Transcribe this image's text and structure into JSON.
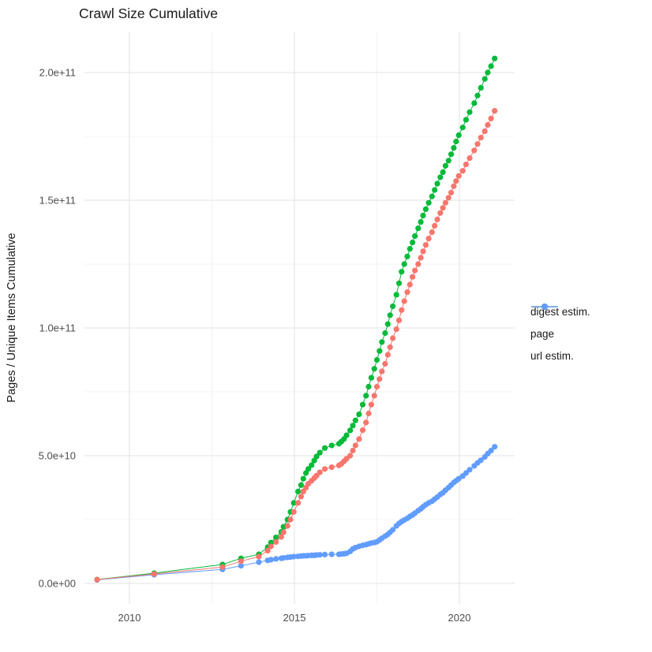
{
  "title": "Crawl Size Cumulative",
  "y_axis_label": "Pages / Unique Items Cumulative",
  "legend": {
    "position": "right",
    "items": [
      {
        "label": "digest estim.",
        "color": "#F8766D"
      },
      {
        "label": "page",
        "color": "#00BA38"
      },
      {
        "label": "url estim.",
        "color": "#619CFF"
      }
    ]
  },
  "colors": {
    "background": "#ffffff",
    "grid_major": "#e3e3e3",
    "grid_minor": "#f0f0f0",
    "tick_label": "#4d4d4d"
  },
  "chart_data": {
    "type": "scatter",
    "title": "Crawl Size Cumulative",
    "xlabel": "",
    "ylabel": "Pages / Unique Items Cumulative",
    "grid": true,
    "legend_position": "right",
    "xlim": [
      2008.6,
      2021.7
    ],
    "ylim": [
      0,
      216000000000.0
    ],
    "x_ticks": [
      {
        "value": 2010,
        "label": "2010"
      },
      {
        "value": 2015,
        "label": "2015"
      },
      {
        "value": 2020,
        "label": "2020"
      }
    ],
    "x_minor_ticks": [
      2012.5,
      2017.5
    ],
    "y_ticks": [
      {
        "value": 0,
        "label": "0.0e+00"
      },
      {
        "value": 50000000000.0,
        "label": "5.0e+10"
      },
      {
        "value": 100000000000.0,
        "label": "1.0e+11"
      },
      {
        "value": 150000000000.0,
        "label": "1.5e+11"
      },
      {
        "value": 200000000000.0,
        "label": "2.0e+11"
      }
    ],
    "y_minor_ticks": [
      25000000000.0,
      75000000000.0,
      125000000000.0,
      175000000000.0
    ],
    "series": [
      {
        "name": "digest estim.",
        "color": "#F8766D",
        "points": [
          [
            2009.02,
            1480000000.0
          ],
          [
            2010.75,
            3700000000.0
          ],
          [
            2012.82,
            6400000000.0
          ],
          [
            2013.38,
            8700000000.0
          ],
          [
            2013.92,
            10500000000.0
          ],
          [
            2014.19,
            12800000000.0
          ],
          [
            2014.29,
            14500000000.0
          ],
          [
            2014.44,
            16200000000.0
          ],
          [
            2014.6,
            18200000000.0
          ],
          [
            2014.67,
            20000000000.0
          ],
          [
            2014.79,
            22500000000.0
          ],
          [
            2014.88,
            25000000000.0
          ],
          [
            2014.98,
            28000000000.0
          ],
          [
            2015.11,
            31500000000.0
          ],
          [
            2015.2,
            34000000000.0
          ],
          [
            2015.27,
            36000000000.0
          ],
          [
            2015.35,
            37500000000.0
          ],
          [
            2015.42,
            39000000000.0
          ],
          [
            2015.52,
            40200000000.0
          ],
          [
            2015.6,
            41200000000.0
          ],
          [
            2015.67,
            42200000000.0
          ],
          [
            2015.77,
            43500000000.0
          ],
          [
            2015.92,
            44800000000.0
          ],
          [
            2016.13,
            45500000000.0
          ],
          [
            2016.35,
            46200000000.0
          ],
          [
            2016.42,
            46800000000.0
          ],
          [
            2016.5,
            47800000000.0
          ],
          [
            2016.58,
            48800000000.0
          ],
          [
            2016.69,
            50000000000.0
          ],
          [
            2016.77,
            52000000000.0
          ],
          [
            2016.85,
            54000000000.0
          ],
          [
            2016.96,
            56500000000.0
          ],
          [
            2017.07,
            60000000000.0
          ],
          [
            2017.17,
            63000000000.0
          ],
          [
            2017.25,
            66500000000.0
          ],
          [
            2017.33,
            70000000000.0
          ],
          [
            2017.42,
            73500000000.0
          ],
          [
            2017.5,
            77000000000.0
          ],
          [
            2017.58,
            80000000000.0
          ],
          [
            2017.65,
            83000000000.0
          ],
          [
            2017.75,
            86000000000.0
          ],
          [
            2017.83,
            89500000000.0
          ],
          [
            2017.9,
            92500000000.0
          ],
          [
            2017.98,
            96000000000.0
          ],
          [
            2018.09,
            99500000000.0
          ],
          [
            2018.17,
            103000000000.0
          ],
          [
            2018.25,
            107000000000.0
          ],
          [
            2018.33,
            110500000000.0
          ],
          [
            2018.42,
            114000000000.0
          ],
          [
            2018.5,
            117000000000.0
          ],
          [
            2018.58,
            120000000000.0
          ],
          [
            2018.65,
            122500000000.0
          ],
          [
            2018.75,
            125000000000.0
          ],
          [
            2018.83,
            127500000000.0
          ],
          [
            2018.9,
            130000000000.0
          ],
          [
            2018.98,
            132500000000.0
          ],
          [
            2019.07,
            135000000000.0
          ],
          [
            2019.17,
            137500000000.0
          ],
          [
            2019.25,
            140000000000.0
          ],
          [
            2019.33,
            142500000000.0
          ],
          [
            2019.42,
            145000000000.0
          ],
          [
            2019.5,
            147000000000.0
          ],
          [
            2019.58,
            149000000000.0
          ],
          [
            2019.67,
            151000000000.0
          ],
          [
            2019.75,
            153000000000.0
          ],
          [
            2019.83,
            155500000000.0
          ],
          [
            2019.9,
            157500000000.0
          ],
          [
            2019.98,
            159500000000.0
          ],
          [
            2020.1,
            161500000000.0
          ],
          [
            2020.2,
            164000000000.0
          ],
          [
            2020.31,
            166500000000.0
          ],
          [
            2020.45,
            169500000000.0
          ],
          [
            2020.55,
            172000000000.0
          ],
          [
            2020.65,
            174500000000.0
          ],
          [
            2020.77,
            177000000000.0
          ],
          [
            2020.86,
            179500000000.0
          ],
          [
            2020.96,
            182000000000.0
          ],
          [
            2021.07,
            185000000000.0
          ]
        ]
      },
      {
        "name": "page",
        "color": "#00BA38",
        "points": [
          [
            2009.02,
            1500000000.0
          ],
          [
            2010.75,
            4000000000.0
          ],
          [
            2012.82,
            7400000000.0
          ],
          [
            2013.38,
            9800000000.0
          ],
          [
            2013.92,
            11400000000.0
          ],
          [
            2014.19,
            14200000000.0
          ],
          [
            2014.29,
            16000000000.0
          ],
          [
            2014.44,
            18000000000.0
          ],
          [
            2014.6,
            20200000000.0
          ],
          [
            2014.67,
            22200000000.0
          ],
          [
            2014.79,
            25000000000.0
          ],
          [
            2014.88,
            28000000000.0
          ],
          [
            2014.98,
            31500000000.0
          ],
          [
            2015.11,
            36000000000.0
          ],
          [
            2015.2,
            38500000000.0
          ],
          [
            2015.27,
            41000000000.0
          ],
          [
            2015.35,
            43200000000.0
          ],
          [
            2015.42,
            44800000000.0
          ],
          [
            2015.52,
            46300000000.0
          ],
          [
            2015.6,
            48100000000.0
          ],
          [
            2015.67,
            49700000000.0
          ],
          [
            2015.77,
            51200000000.0
          ],
          [
            2015.92,
            53000000000.0
          ],
          [
            2016.13,
            54000000000.0
          ],
          [
            2016.35,
            54700000000.0
          ],
          [
            2016.42,
            55500000000.0
          ],
          [
            2016.5,
            56500000000.0
          ],
          [
            2016.58,
            58000000000.0
          ],
          [
            2016.69,
            59900000000.0
          ],
          [
            2016.77,
            61800000000.0
          ],
          [
            2016.85,
            63800000000.0
          ],
          [
            2016.96,
            66200000000.0
          ],
          [
            2017.07,
            70000000000.0
          ],
          [
            2017.17,
            73500000000.0
          ],
          [
            2017.25,
            77000000000.0
          ],
          [
            2017.33,
            80500000000.0
          ],
          [
            2017.42,
            84000000000.0
          ],
          [
            2017.5,
            87500000000.0
          ],
          [
            2017.58,
            91000000000.0
          ],
          [
            2017.65,
            94500000000.0
          ],
          [
            2017.75,
            98000000000.0
          ],
          [
            2017.83,
            101500000000.0
          ],
          [
            2017.9,
            105000000000.0
          ],
          [
            2017.98,
            108500000000.0
          ],
          [
            2018.09,
            113000000000.0
          ],
          [
            2018.17,
            117500000000.0
          ],
          [
            2018.25,
            122000000000.0
          ],
          [
            2018.33,
            125000000000.0
          ],
          [
            2018.42,
            128000000000.0
          ],
          [
            2018.5,
            131000000000.0
          ],
          [
            2018.58,
            133500000000.0
          ],
          [
            2018.65,
            136000000000.0
          ],
          [
            2018.75,
            139000000000.0
          ],
          [
            2018.83,
            141500000000.0
          ],
          [
            2018.9,
            144000000000.0
          ],
          [
            2018.98,
            146500000000.0
          ],
          [
            2019.07,
            149000000000.0
          ],
          [
            2019.17,
            151500000000.0
          ],
          [
            2019.25,
            154000000000.0
          ],
          [
            2019.33,
            156500000000.0
          ],
          [
            2019.42,
            159000000000.0
          ],
          [
            2019.5,
            161000000000.0
          ],
          [
            2019.58,
            163500000000.0
          ],
          [
            2019.67,
            165500000000.0
          ],
          [
            2019.75,
            168000000000.0
          ],
          [
            2019.83,
            170500000000.0
          ],
          [
            2019.9,
            173000000000.0
          ],
          [
            2019.98,
            175500000000.0
          ],
          [
            2020.1,
            178500000000.0
          ],
          [
            2020.2,
            181500000000.0
          ],
          [
            2020.31,
            184500000000.0
          ],
          [
            2020.45,
            188000000000.0
          ],
          [
            2020.55,
            191000000000.0
          ],
          [
            2020.65,
            194000000000.0
          ],
          [
            2020.77,
            197500000000.0
          ],
          [
            2020.86,
            200000000000.0
          ],
          [
            2020.96,
            202500000000.0
          ],
          [
            2021.07,
            205500000000.0
          ]
        ]
      },
      {
        "name": "url estim.",
        "color": "#619CFF",
        "points": [
          [
            2009.02,
            1400000000.0
          ],
          [
            2010.75,
            3400000000.0
          ],
          [
            2012.82,
            5500000000.0
          ],
          [
            2013.38,
            6900000000.0
          ],
          [
            2013.92,
            8300000000.0
          ],
          [
            2014.19,
            9000000000.0
          ],
          [
            2014.29,
            9300000000.0
          ],
          [
            2014.44,
            9600000000.0
          ],
          [
            2014.6,
            9800000000.0
          ],
          [
            2014.67,
            10000000000.0
          ],
          [
            2014.79,
            10200000000.0
          ],
          [
            2014.88,
            10300000000.0
          ],
          [
            2014.98,
            10500000000.0
          ],
          [
            2015.11,
            10600000000.0
          ],
          [
            2015.2,
            10700000000.0
          ],
          [
            2015.27,
            10800000000.0
          ],
          [
            2015.35,
            10800000000.0
          ],
          [
            2015.42,
            10900000000.0
          ],
          [
            2015.52,
            11000000000.0
          ],
          [
            2015.6,
            11000000000.0
          ],
          [
            2015.67,
            11100000000.0
          ],
          [
            2015.77,
            11200000000.0
          ],
          [
            2015.92,
            11300000000.0
          ],
          [
            2016.13,
            11400000000.0
          ],
          [
            2016.35,
            11400000000.0
          ],
          [
            2016.42,
            11500000000.0
          ],
          [
            2016.5,
            11600000000.0
          ],
          [
            2016.58,
            11800000000.0
          ],
          [
            2016.69,
            12500000000.0
          ],
          [
            2016.77,
            13500000000.0
          ],
          [
            2016.85,
            14000000000.0
          ],
          [
            2016.96,
            14500000000.0
          ],
          [
            2017.07,
            14900000000.0
          ],
          [
            2017.17,
            15200000000.0
          ],
          [
            2017.25,
            15500000000.0
          ],
          [
            2017.33,
            15800000000.0
          ],
          [
            2017.42,
            16000000000.0
          ],
          [
            2017.5,
            16300000000.0
          ],
          [
            2017.58,
            17000000000.0
          ],
          [
            2017.65,
            17700000000.0
          ],
          [
            2017.75,
            18500000000.0
          ],
          [
            2017.83,
            19200000000.0
          ],
          [
            2017.9,
            20000000000.0
          ],
          [
            2017.98,
            21000000000.0
          ],
          [
            2018.09,
            22500000000.0
          ],
          [
            2018.17,
            23500000000.0
          ],
          [
            2018.25,
            24200000000.0
          ],
          [
            2018.33,
            24800000000.0
          ],
          [
            2018.42,
            25500000000.0
          ],
          [
            2018.5,
            26200000000.0
          ],
          [
            2018.58,
            26800000000.0
          ],
          [
            2018.65,
            27500000000.0
          ],
          [
            2018.75,
            28500000000.0
          ],
          [
            2018.83,
            29200000000.0
          ],
          [
            2018.9,
            30000000000.0
          ],
          [
            2018.98,
            30800000000.0
          ],
          [
            2019.07,
            31500000000.0
          ],
          [
            2019.17,
            32200000000.0
          ],
          [
            2019.25,
            33000000000.0
          ],
          [
            2019.33,
            33800000000.0
          ],
          [
            2019.42,
            34800000000.0
          ],
          [
            2019.5,
            35500000000.0
          ],
          [
            2019.58,
            36500000000.0
          ],
          [
            2019.67,
            37500000000.0
          ],
          [
            2019.75,
            38500000000.0
          ],
          [
            2019.83,
            39500000000.0
          ],
          [
            2019.9,
            40200000000.0
          ],
          [
            2019.98,
            41000000000.0
          ],
          [
            2020.1,
            42000000000.0
          ],
          [
            2020.2,
            43200000000.0
          ],
          [
            2020.31,
            44500000000.0
          ],
          [
            2020.45,
            46000000000.0
          ],
          [
            2020.55,
            47200000000.0
          ],
          [
            2020.65,
            48200000000.0
          ],
          [
            2020.77,
            49500000000.0
          ],
          [
            2020.86,
            50800000000.0
          ],
          [
            2020.96,
            52000000000.0
          ],
          [
            2021.07,
            53500000000.0
          ]
        ]
      }
    ]
  }
}
